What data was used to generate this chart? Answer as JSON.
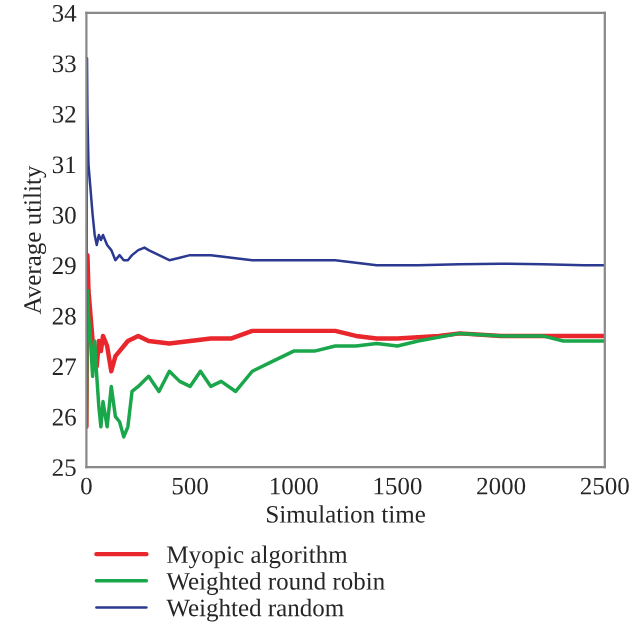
{
  "chart_data": {
    "type": "line",
    "xlabel": "Simulation time",
    "ylabel": "Average utility",
    "xlim": [
      0,
      2500
    ],
    "xticks": [
      0,
      500,
      1000,
      1500,
      2000,
      2500
    ],
    "ylim": [
      25,
      34
    ],
    "yticks": [
      25,
      26,
      27,
      28,
      29,
      30,
      31,
      32,
      33,
      34
    ],
    "grid": false,
    "legend": "bottom",
    "marker": "none",
    "line_style": "solid",
    "series": [
      {
        "name": "Myopic algorithm",
        "color": "#e8262b",
        "x": [
          0,
          5,
          10,
          20,
          30,
          40,
          50,
          60,
          70,
          80,
          100,
          120,
          140,
          160,
          200,
          250,
          300,
          400,
          500,
          600,
          700,
          800,
          900,
          1000,
          1200,
          1300,
          1400,
          1500,
          1700,
          1800,
          2000,
          2200,
          2400,
          2500
        ],
        "values": [
          25.8,
          29.2,
          28.5,
          28,
          27.5,
          27.2,
          27.0,
          27.5,
          27.3,
          27.6,
          27.4,
          26.9,
          27.2,
          27.3,
          27.5,
          27.6,
          27.5,
          27.45,
          27.5,
          27.55,
          27.55,
          27.7,
          27.7,
          27.7,
          27.7,
          27.6,
          27.55,
          27.55,
          27.6,
          27.65,
          27.6,
          27.6,
          27.6,
          27.6
        ]
      },
      {
        "name": "Weighted round robin",
        "color": "#1aa64a",
        "x": [
          0,
          5,
          10,
          20,
          30,
          40,
          50,
          60,
          70,
          80,
          100,
          120,
          140,
          160,
          180,
          200,
          220,
          250,
          300,
          350,
          400,
          450,
          500,
          550,
          600,
          650,
          720,
          800,
          900,
          1000,
          1100,
          1200,
          1300,
          1400,
          1500,
          1600,
          1800,
          2000,
          2200,
          2300,
          2500
        ],
        "values": [
          25.8,
          28.5,
          28,
          27.5,
          26.8,
          27.5,
          26.8,
          26.2,
          25.8,
          26.3,
          25.8,
          26.6,
          26.0,
          25.9,
          25.6,
          25.8,
          26.5,
          26.6,
          26.8,
          26.5,
          26.9,
          26.7,
          26.6,
          26.9,
          26.6,
          26.7,
          26.5,
          26.9,
          27.1,
          27.3,
          27.3,
          27.4,
          27.4,
          27.45,
          27.4,
          27.5,
          27.65,
          27.6,
          27.6,
          27.5,
          27.5
        ]
      },
      {
        "name": "Weighted random",
        "color": "#2b3990",
        "x": [
          0,
          3,
          5,
          10,
          20,
          30,
          40,
          50,
          60,
          70,
          80,
          100,
          120,
          140,
          160,
          180,
          200,
          220,
          250,
          280,
          300,
          350,
          400,
          450,
          500,
          600,
          700,
          800,
          900,
          1000,
          1200,
          1300,
          1400,
          1600,
          1800,
          2000,
          2200,
          2400,
          2500
        ],
        "values": [
          25.8,
          33.1,
          32,
          31,
          30.5,
          30,
          29.6,
          29.4,
          29.6,
          29.5,
          29.6,
          29.4,
          29.3,
          29.1,
          29.2,
          29.1,
          29.1,
          29.2,
          29.3,
          29.35,
          29.3,
          29.2,
          29.1,
          29.15,
          29.2,
          29.2,
          29.15,
          29.1,
          29.1,
          29.1,
          29.1,
          29.05,
          29.0,
          29.0,
          29.02,
          29.03,
          29.02,
          29.0,
          29.0
        ]
      }
    ]
  }
}
